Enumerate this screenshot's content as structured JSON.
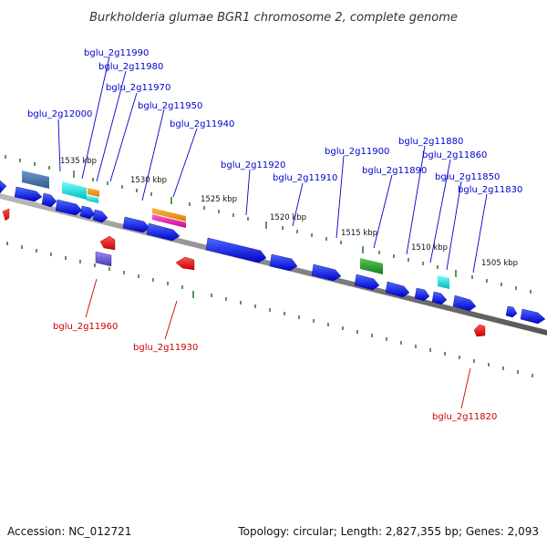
{
  "title": "Burkholderia glumae BGR1 chromosome 2, complete genome",
  "footer": {
    "accession": "Accession: NC_012721",
    "topology": "Topology: circular; Length: 2,827,355 bp; Genes: 2,093"
  },
  "colors": {
    "forward_label": "#0000cc",
    "reverse_label": "#cc0000",
    "gene_blue": "#0000ee",
    "gene_red": "#ee0000",
    "backbone": "#888888",
    "tick_green": "#2e7d32"
  },
  "kbp_labels": [
    "1535 kbp",
    "1530 kbp",
    "1525 kbp",
    "1520 kbp",
    "1515 kbp",
    "1510 kbp",
    "1505 kbp"
  ],
  "forward_labels": [
    "bglu_2g11990",
    "bglu_2g11980",
    "bglu_2g11970",
    "bglu_2g11950",
    "bglu_2g11940",
    "bglu_2g12000",
    "bglu_2g11920",
    "bglu_2g11910",
    "bglu_2g11900",
    "bglu_2g11890",
    "bglu_2g11880",
    "bglu_2g11860",
    "bglu_2g11850",
    "bglu_2g11830"
  ],
  "reverse_labels": [
    "bglu_2g11960",
    "bglu_2g11930",
    "bglu_2g11820"
  ]
}
